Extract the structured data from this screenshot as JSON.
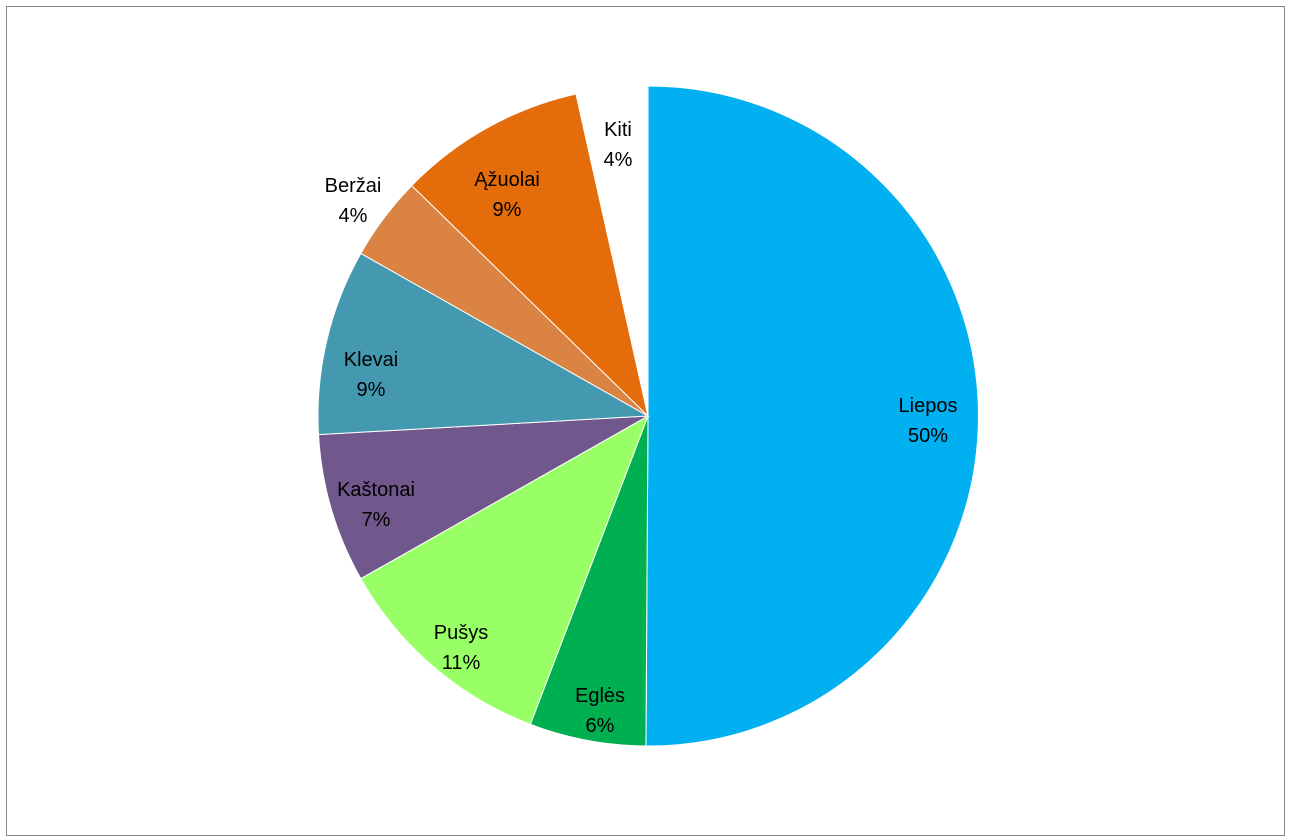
{
  "chart_data": {
    "type": "pie",
    "title": "",
    "legend": "none",
    "start_angle_deg": 0,
    "direction": "clockwise",
    "slices": [
      {
        "name": "Liepos",
        "label": "50%",
        "value": 50.1,
        "color": "#00B0F0"
      },
      {
        "name": "Eglės",
        "label": "6%",
        "value": 5.7,
        "color": "#00B050"
      },
      {
        "name": "Pušys",
        "label": "11%",
        "value": 11.0,
        "color": "#99FF66"
      },
      {
        "name": "Kaštonai",
        "label": "7%",
        "value": 7.3,
        "color": "#70578C"
      },
      {
        "name": "Klevai",
        "label": "9%",
        "value": 9.1,
        "color": "#4499B1"
      },
      {
        "name": "Beržai",
        "label": "4%",
        "value": 4.1,
        "color": "#DA8342"
      },
      {
        "name": "Ąžuolai",
        "label": "9%",
        "value": 9.2,
        "color": "#E46C0A"
      },
      {
        "name": "Kiti",
        "label": "4%",
        "value": 3.5,
        "color": "#FFFFFF"
      }
    ]
  }
}
